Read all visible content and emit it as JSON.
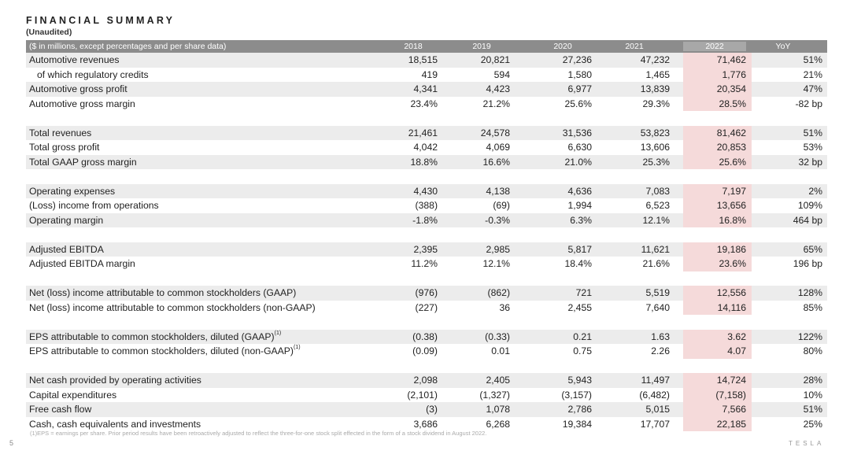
{
  "title": "FINANCIAL SUMMARY",
  "subtitle": "(Unaudited)",
  "header": {
    "label": "($ in millions, except percentages and per share data)",
    "columns": [
      "2018",
      "2019",
      "2020",
      "2021",
      "2022",
      "YoY"
    ]
  },
  "groups": [
    [
      {
        "label": "Automotive revenues",
        "values": [
          "18,515",
          "20,821",
          "27,236",
          "47,232",
          "71,462",
          "51%"
        ]
      },
      {
        "label": "of which regulatory credits",
        "indent": true,
        "values": [
          "419",
          "594",
          "1,580",
          "1,465",
          "1,776",
          "21%"
        ]
      },
      {
        "label": "Automotive gross profit",
        "values": [
          "4,341",
          "4,423",
          "6,977",
          "13,839",
          "20,354",
          "47%"
        ]
      },
      {
        "label": "Automotive gross margin",
        "values": [
          "23.4%",
          "21.2%",
          "25.6%",
          "29.3%",
          "28.5%",
          "-82 bp"
        ]
      }
    ],
    [
      {
        "label": "Total revenues",
        "values": [
          "21,461",
          "24,578",
          "31,536",
          "53,823",
          "81,462",
          "51%"
        ]
      },
      {
        "label": "Total gross profit",
        "values": [
          "4,042",
          "4,069",
          "6,630",
          "13,606",
          "20,853",
          "53%"
        ]
      },
      {
        "label": "Total GAAP gross margin",
        "values": [
          "18.8%",
          "16.6%",
          "21.0%",
          "25.3%",
          "25.6%",
          "32 bp"
        ]
      }
    ],
    [
      {
        "label": "Operating expenses",
        "values": [
          "4,430",
          "4,138",
          "4,636",
          "7,083",
          "7,197",
          "2%"
        ]
      },
      {
        "label": "(Loss) income from operations",
        "values": [
          "(388)",
          "(69)",
          "1,994",
          "6,523",
          "13,656",
          "109%"
        ]
      },
      {
        "label": "Operating margin",
        "values": [
          "-1.8%",
          "-0.3%",
          "6.3%",
          "12.1%",
          "16.8%",
          "464 bp"
        ]
      }
    ],
    [
      {
        "label": "Adjusted EBITDA",
        "values": [
          "2,395",
          "2,985",
          "5,817",
          "11,621",
          "19,186",
          "65%"
        ]
      },
      {
        "label": "Adjusted EBITDA margin",
        "values": [
          "11.2%",
          "12.1%",
          "18.4%",
          "21.6%",
          "23.6%",
          "196 bp"
        ]
      }
    ],
    [
      {
        "label": "Net (loss) income attributable to common stockholders (GAAP)",
        "values": [
          "(976)",
          "(862)",
          "721",
          "5,519",
          "12,556",
          "128%"
        ]
      },
      {
        "label": "Net (loss) income attributable to common stockholders (non-GAAP)",
        "values": [
          "(227)",
          "36",
          "2,455",
          "7,640",
          "14,116",
          "85%"
        ]
      }
    ],
    [
      {
        "label": "EPS attributable to common stockholders, diluted (GAAP)",
        "sup": "(1)",
        "values": [
          "(0.38)",
          "(0.33)",
          "0.21",
          "1.63",
          "3.62",
          "122%"
        ]
      },
      {
        "label": "EPS attributable to common stockholders, diluted (non-GAAP)",
        "sup": "(1)",
        "values": [
          "(0.09)",
          "0.01",
          "0.75",
          "2.26",
          "4.07",
          "80%"
        ]
      }
    ],
    [
      {
        "label": "Net cash provided by operating activities",
        "values": [
          "2,098",
          "2,405",
          "5,943",
          "11,497",
          "14,724",
          "28%"
        ]
      },
      {
        "label": "Capital expenditures",
        "values": [
          "(2,101)",
          "(1,327)",
          "(3,157)",
          "(6,482)",
          "(7,158)",
          "10%"
        ]
      },
      {
        "label": "Free cash flow",
        "values": [
          "(3)",
          "1,078",
          "2,786",
          "5,015",
          "7,566",
          "51%"
        ]
      },
      {
        "label": "Cash, cash equivalents and investments",
        "values": [
          "3,686",
          "6,268",
          "19,384",
          "17,707",
          "22,185",
          "25%"
        ]
      }
    ]
  ],
  "footnote": "(1)EPS = earnings per share. Prior period results have been retroactively adjusted to reflect the three-for-one stock split effected in the form of a stock dividend in August 2022.",
  "page_number": "5",
  "brand": "TESLA",
  "colors": {
    "header_bg": "#8c8c8c",
    "row_shade": "#ececec",
    "highlight": "#f5dada"
  }
}
